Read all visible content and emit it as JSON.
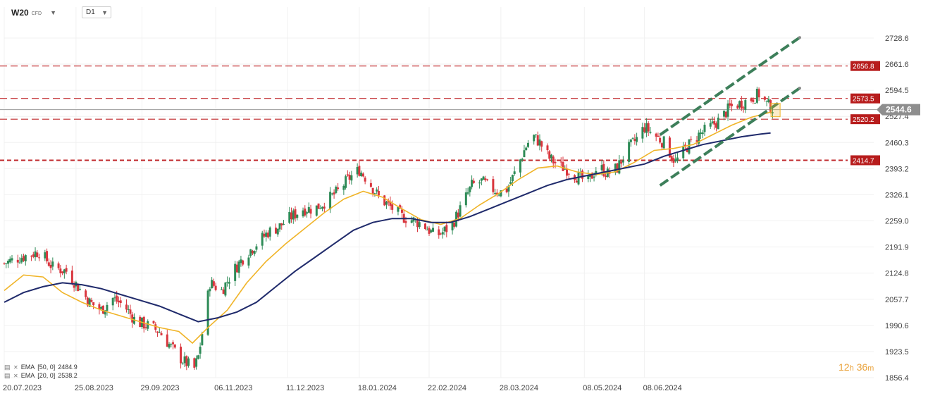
{
  "header": {
    "symbol": "W20",
    "instrument_type": "CFD",
    "timeframe": "D1"
  },
  "legend": [
    {
      "label": "EMA",
      "params": "[50, 0]",
      "value": "2484.9",
      "color": "#1f2a6b"
    },
    {
      "label": "EMA",
      "params": "[20, 0]",
      "value": "2538.2",
      "color": "#f0b428"
    }
  ],
  "countdown": {
    "hours": "12",
    "h_unit": "h",
    "minutes": "36",
    "m_unit": "m"
  },
  "colors": {
    "bull": "#2e8b57",
    "bear": "#d9363e",
    "ema20": "#f0b428",
    "ema50": "#1f2a6b",
    "level": "#c0282b",
    "level_label_bg": "#b71c1c",
    "channel": "#3d7f5a",
    "current_price_bg": "#8e8e8e"
  },
  "chart_data": {
    "type": "candlestick",
    "y_ticks": [
      "2728.6",
      "2661.6",
      "2594.5",
      "2527.4",
      "2460.3",
      "2393.2",
      "2326.1",
      "2259.0",
      "2191.9",
      "2124.8",
      "2057.7",
      "1990.6",
      "1923.5",
      "1856.4"
    ],
    "x_ticks": [
      "20.07.2023",
      "25.08.2023",
      "29.09.2023",
      "06.11.2023",
      "11.12.2023",
      "18.01.2024",
      "22.02.2024",
      "28.03.2024",
      "08.05.2024",
      "08.06.2024"
    ],
    "ylim": [
      1856.4,
      2728.6
    ],
    "current_price": "2544.6",
    "levels": [
      {
        "value": 2656.8,
        "label": "2656.8"
      },
      {
        "value": 2573.5,
        "label": "2573.5"
      },
      {
        "value": 2520.2,
        "label": "2520.2"
      },
      {
        "value": 2414.7,
        "label": "2414.7"
      }
    ],
    "close_path": [
      [
        0,
        2150
      ],
      [
        8,
        2165
      ],
      [
        18,
        2180
      ],
      [
        25,
        2140
      ],
      [
        32,
        2130
      ],
      [
        38,
        2090
      ],
      [
        44,
        2050
      ],
      [
        50,
        2030
      ],
      [
        56,
        2060
      ],
      [
        62,
        2040
      ],
      [
        68,
        2000
      ],
      [
        74,
        1990
      ],
      [
        80,
        1975
      ],
      [
        86,
        1935
      ],
      [
        92,
        1900
      ],
      [
        98,
        1880
      ],
      [
        100,
        1910
      ],
      [
        103,
        2000
      ],
      [
        106,
        2100
      ],
      [
        112,
        2080
      ],
      [
        118,
        2130
      ],
      [
        124,
        2170
      ],
      [
        130,
        2200
      ],
      [
        136,
        2230
      ],
      [
        142,
        2245
      ],
      [
        148,
        2270
      ],
      [
        154,
        2290
      ],
      [
        160,
        2290
      ],
      [
        166,
        2310
      ],
      [
        172,
        2335
      ],
      [
        178,
        2370
      ],
      [
        183,
        2390
      ],
      [
        188,
        2360
      ],
      [
        193,
        2320
      ],
      [
        199,
        2295
      ],
      [
        205,
        2270
      ],
      [
        211,
        2260
      ],
      [
        216,
        2250
      ],
      [
        222,
        2220
      ],
      [
        226,
        2230
      ],
      [
        231,
        2250
      ],
      [
        236,
        2300
      ],
      [
        241,
        2350
      ],
      [
        246,
        2360
      ],
      [
        252,
        2340
      ],
      [
        258,
        2330
      ],
      [
        263,
        2380
      ],
      [
        268,
        2440
      ],
      [
        272,
        2480
      ],
      [
        276,
        2460
      ],
      [
        281,
        2420
      ],
      [
        286,
        2400
      ],
      [
        291,
        2390
      ],
      [
        296,
        2370
      ],
      [
        301,
        2360
      ],
      [
        306,
        2400
      ],
      [
        311,
        2380
      ],
      [
        316,
        2395
      ],
      [
        321,
        2440
      ],
      [
        326,
        2470
      ],
      [
        330,
        2500
      ],
      [
        335,
        2480
      ],
      [
        340,
        2460
      ],
      [
        346,
        2410
      ],
      [
        352,
        2450
      ],
      [
        358,
        2480
      ],
      [
        364,
        2500
      ],
      [
        369,
        2520
      ],
      [
        374,
        2550
      ],
      [
        379,
        2560
      ],
      [
        384,
        2570
      ],
      [
        389,
        2585
      ],
      [
        393,
        2560
      ],
      [
        397,
        2545
      ]
    ],
    "series": [
      {
        "name": "EMA [20, 0]",
        "last": 2538.2,
        "points": [
          [
            0,
            2080
          ],
          [
            10,
            2120
          ],
          [
            20,
            2115
          ],
          [
            30,
            2075
          ],
          [
            40,
            2050
          ],
          [
            50,
            2030
          ],
          [
            60,
            2015
          ],
          [
            70,
            2000
          ],
          [
            80,
            1985
          ],
          [
            90,
            1975
          ],
          [
            97,
            1945
          ],
          [
            105,
            1985
          ],
          [
            115,
            2030
          ],
          [
            125,
            2100
          ],
          [
            135,
            2155
          ],
          [
            145,
            2200
          ],
          [
            155,
            2240
          ],
          [
            165,
            2280
          ],
          [
            175,
            2315
          ],
          [
            185,
            2335
          ],
          [
            195,
            2320
          ],
          [
            205,
            2290
          ],
          [
            215,
            2262
          ],
          [
            225,
            2250
          ],
          [
            235,
            2265
          ],
          [
            245,
            2300
          ],
          [
            255,
            2330
          ],
          [
            265,
            2365
          ],
          [
            275,
            2395
          ],
          [
            285,
            2400
          ],
          [
            295,
            2385
          ],
          [
            305,
            2378
          ],
          [
            315,
            2385
          ],
          [
            325,
            2410
          ],
          [
            335,
            2440
          ],
          [
            345,
            2445
          ],
          [
            355,
            2455
          ],
          [
            365,
            2480
          ],
          [
            375,
            2505
          ],
          [
            385,
            2525
          ],
          [
            395,
            2538.2
          ]
        ]
      },
      {
        "name": "EMA [50, 0]",
        "last": 2484.9,
        "points": [
          [
            0,
            2050
          ],
          [
            10,
            2075
          ],
          [
            20,
            2090
          ],
          [
            30,
            2100
          ],
          [
            40,
            2095
          ],
          [
            50,
            2085
          ],
          [
            60,
            2070
          ],
          [
            70,
            2055
          ],
          [
            80,
            2040
          ],
          [
            90,
            2020
          ],
          [
            100,
            2000
          ],
          [
            110,
            2010
          ],
          [
            120,
            2025
          ],
          [
            130,
            2050
          ],
          [
            140,
            2090
          ],
          [
            150,
            2130
          ],
          [
            160,
            2165
          ],
          [
            170,
            2200
          ],
          [
            180,
            2235
          ],
          [
            190,
            2255
          ],
          [
            200,
            2265
          ],
          [
            210,
            2265
          ],
          [
            220,
            2255
          ],
          [
            230,
            2255
          ],
          [
            240,
            2270
          ],
          [
            250,
            2290
          ],
          [
            260,
            2310
          ],
          [
            270,
            2330
          ],
          [
            280,
            2350
          ],
          [
            290,
            2365
          ],
          [
            300,
            2375
          ],
          [
            310,
            2385
          ],
          [
            320,
            2395
          ],
          [
            330,
            2405
          ],
          [
            340,
            2425
          ],
          [
            350,
            2440
          ],
          [
            360,
            2455
          ],
          [
            370,
            2465
          ],
          [
            380,
            2475
          ],
          [
            390,
            2482
          ],
          [
            395,
            2484.9
          ]
        ]
      }
    ],
    "channel": {
      "upper": [
        [
          338,
          2480
        ],
        [
          410,
          2730
        ]
      ],
      "lower": [
        [
          338,
          2350
        ],
        [
          410,
          2600
        ]
      ]
    },
    "grid": true,
    "last_index": 397,
    "x_tick_index": [
      0,
      37,
      71,
      109,
      146,
      183,
      219,
      256,
      299,
      330
    ]
  }
}
